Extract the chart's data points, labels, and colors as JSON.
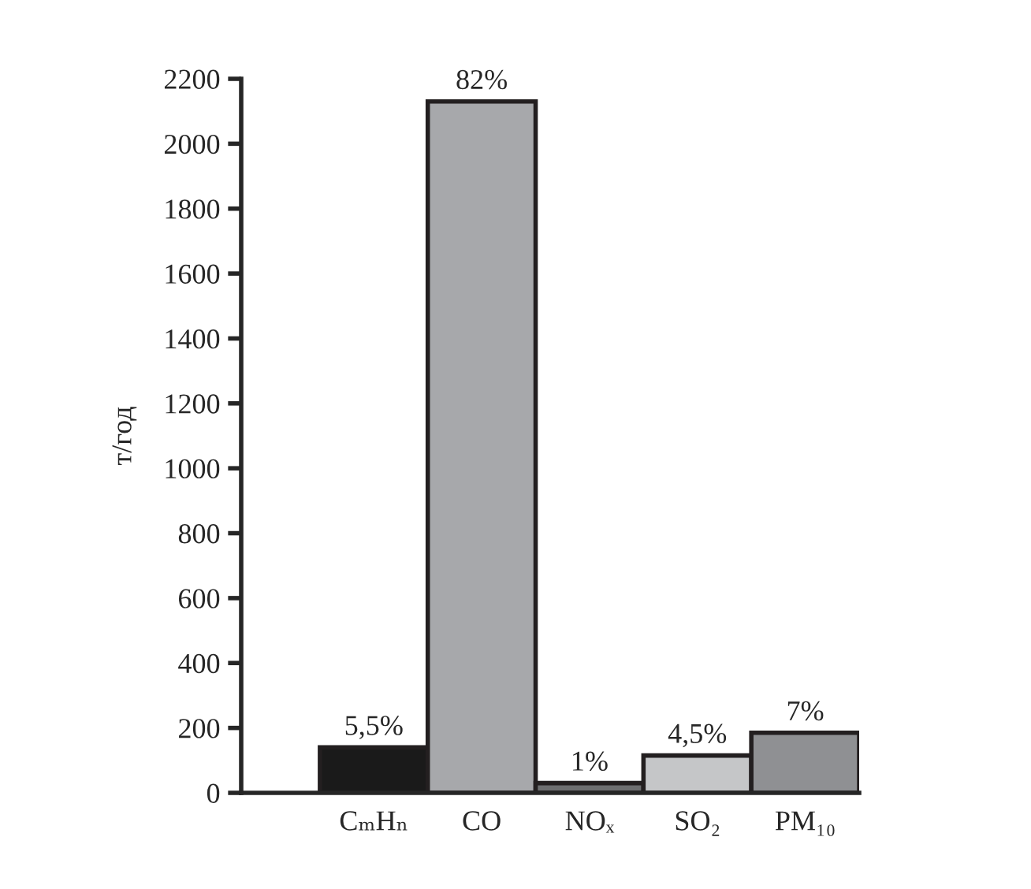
{
  "chart_data": {
    "type": "bar",
    "ylabel": "т/год",
    "categories": [
      "CₘHₙ",
      "CO",
      "NOₓ",
      "SO₂",
      "PM₁₀"
    ],
    "values": [
      140,
      2130,
      30,
      115,
      185
    ],
    "colors": [
      "#1a1a1a",
      "#a7a8ab",
      "#6d6e70",
      "#c5c6c8",
      "#8f9093"
    ],
    "annotations": [
      {
        "text": "5,5%",
        "x": "CₘHₙ",
        "y": 140
      },
      {
        "text": "82%",
        "x": "CO",
        "y": 2130
      },
      {
        "text": "1%",
        "x": "NOₓ",
        "y": 30
      },
      {
        "text": "4,5%",
        "x": "SO₂",
        "y": 115
      },
      {
        "text": "7%",
        "x": "PM₁₀",
        "y": 185
      }
    ],
    "ylim": [
      0,
      2200
    ],
    "yticks": [
      0,
      200,
      400,
      600,
      800,
      1000,
      1200,
      1400,
      1600,
      1800,
      2000,
      2200
    ],
    "grid": false,
    "legend": false
  }
}
